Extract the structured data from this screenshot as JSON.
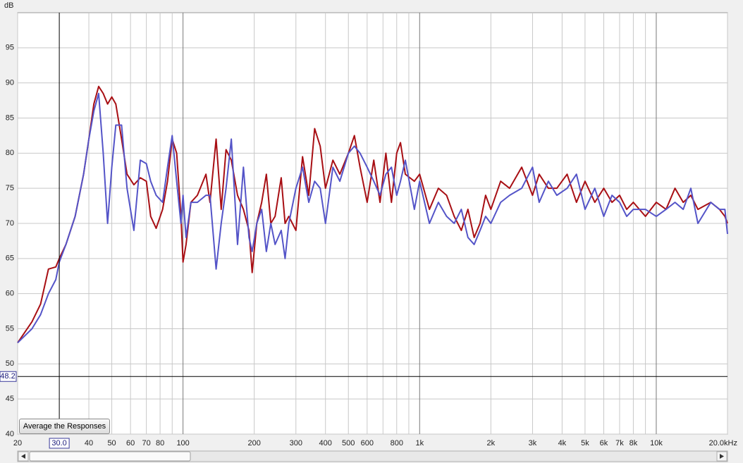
{
  "chart_data": {
    "type": "line",
    "y_unit": "dB",
    "x": [
      20,
      23,
      25,
      27,
      29,
      30,
      32,
      35,
      38,
      40,
      42,
      44,
      46,
      48,
      50,
      52,
      55,
      58,
      62,
      66,
      70,
      73,
      77,
      82,
      86,
      90,
      94,
      98,
      100,
      103,
      108,
      115,
      125,
      130,
      138,
      145,
      152,
      160,
      170,
      180,
      190,
      196,
      205,
      215,
      225,
      235,
      245,
      260,
      270,
      280,
      300,
      320,
      340,
      360,
      380,
      400,
      430,
      460,
      500,
      530,
      560,
      600,
      640,
      680,
      720,
      760,
      800,
      830,
      870,
      950,
      1000,
      1100,
      1200,
      1300,
      1400,
      1500,
      1600,
      1700,
      1800,
      1900,
      2000,
      2200,
      2400,
      2700,
      3000,
      3200,
      3500,
      3800,
      4200,
      4600,
      5000,
      5500,
      6000,
      6500,
      7000,
      7500,
      8000,
      9000,
      10000,
      11000,
      12000,
      13000,
      14000,
      15000,
      17000,
      18500,
      19500,
      20000
    ],
    "series": [
      {
        "color": "#a80f14",
        "values": [
          53,
          56,
          58.5,
          63.5,
          63.8,
          65,
          67,
          71,
          77,
          82,
          87,
          89.5,
          88.5,
          87,
          88,
          87,
          82,
          77,
          75.5,
          76.5,
          76,
          71,
          69.3,
          72,
          76,
          82,
          80,
          71,
          64.5,
          67,
          73,
          74,
          77,
          73,
          82,
          72,
          80.5,
          79,
          74,
          72,
          69,
          63,
          70,
          73,
          77,
          70,
          71,
          76.5,
          70,
          71,
          69,
          79.5,
          74,
          83.5,
          81,
          75,
          79,
          77,
          80,
          82.5,
          78,
          73,
          79,
          73,
          80,
          73,
          80,
          81.5,
          77,
          76,
          77,
          72,
          75,
          74,
          71,
          69,
          72,
          68,
          70,
          74,
          72,
          76,
          75,
          78,
          74,
          77,
          75,
          75,
          77,
          73,
          76,
          73,
          75,
          73,
          74,
          72,
          73,
          71,
          73,
          72,
          75,
          73,
          74,
          72,
          73,
          72,
          71,
          70
        ]
      },
      {
        "color": "#5454c8",
        "values": [
          53,
          55,
          57,
          60,
          62,
          64.5,
          67,
          71,
          77,
          82,
          86,
          88.5,
          80,
          70,
          78,
          84,
          84,
          75,
          69,
          79,
          78.5,
          76,
          74,
          73,
          78,
          82.5,
          76,
          70,
          74,
          68,
          73,
          73,
          74,
          74,
          63.5,
          70,
          75,
          82,
          67,
          78,
          68,
          66,
          70,
          72,
          66,
          70,
          67,
          69,
          65,
          70,
          75,
          78,
          73,
          76,
          75,
          70,
          78,
          76,
          80,
          81,
          80,
          78,
          76,
          74,
          77,
          78,
          74,
          76,
          79,
          72,
          76,
          70,
          73,
          71,
          70,
          72,
          68,
          67,
          69,
          71,
          70,
          73,
          74,
          75,
          78,
          73,
          76,
          74,
          75,
          77,
          72,
          75,
          71,
          74,
          73,
          71,
          72,
          72,
          71,
          72,
          73,
          72,
          75,
          70,
          73,
          72,
          72,
          68.5
        ]
      }
    ],
    "xlog": true,
    "xlim": [
      20,
      20000
    ],
    "ylim": [
      40,
      100
    ],
    "xticks": [
      20,
      40,
      50,
      60,
      70,
      80,
      100,
      200,
      300,
      400,
      500,
      600,
      800,
      {
        "value": 1000,
        "label": "1k"
      },
      {
        "value": 2000,
        "label": "2k"
      },
      {
        "value": 3000,
        "label": "3k"
      },
      {
        "value": 4000,
        "label": "4k"
      },
      {
        "value": 5000,
        "label": "5k"
      },
      {
        "value": 6000,
        "label": "6k"
      },
      {
        "value": 7000,
        "label": "7k"
      },
      {
        "value": 8000,
        "label": "8k"
      },
      {
        "value": 10000,
        "label": "10k"
      },
      {
        "value": 20000,
        "label": "20.0kHz"
      }
    ],
    "minor_xticks": [
      90,
      700,
      900,
      9000
    ],
    "yticks": [
      40,
      45,
      50,
      55,
      60,
      65,
      70,
      75,
      80,
      85,
      90,
      95
    ],
    "grid": true,
    "cursor": {
      "x": {
        "value": 30,
        "label": "30.0"
      },
      "y": {
        "value": 48.2,
        "label": "48.2"
      }
    }
  },
  "button": "Average the Responses"
}
